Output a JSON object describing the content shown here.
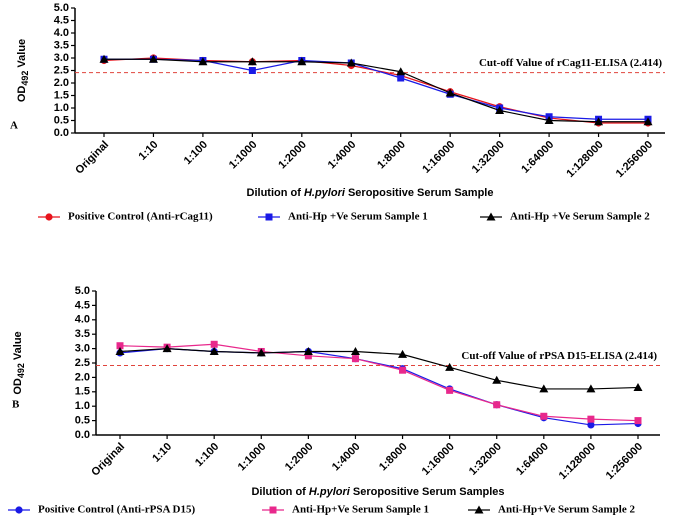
{
  "chart_data": [
    {
      "type": "line",
      "panel_label": "A",
      "ylabel": {
        "main": "OD",
        "sub": "492",
        "rest": " Value"
      },
      "xlabel": [
        "Dilution of ",
        "H.pylori",
        " Seropositive Serum Sample"
      ],
      "categories": [
        "Original",
        "1:10",
        "1:100",
        "1:1000",
        "1:2000",
        "1:4000",
        "1:8000",
        "1:16000",
        "1:32000",
        "1:64000",
        "1:128000",
        "1:256000"
      ],
      "ylim": [
        0,
        5
      ],
      "yticks": [
        {
          "value": 0,
          "label": "0.0"
        },
        0.5,
        {
          "value": 1,
          "label": "1.0"
        },
        1.5,
        {
          "value": 2,
          "label": "2.0"
        },
        2.5,
        {
          "value": 3,
          "label": "3.0"
        },
        3.5,
        {
          "value": 4,
          "label": "4.0"
        },
        4.5,
        {
          "value": 5,
          "label": "5.0"
        }
      ],
      "cutoff": {
        "value": 2.414,
        "label": "Cut-off Value of rCag11-ELISA (2.414)",
        "color": "#e0443c"
      },
      "series": [
        {
          "name": "Positive Control (Anti-rCag11)",
          "color": "#e8141c",
          "marker": "circle",
          "values": [
            2.9,
            3.0,
            2.9,
            2.85,
            2.9,
            2.7,
            2.3,
            1.65,
            1.05,
            0.6,
            0.4,
            0.4
          ]
        },
        {
          "name": "Anti-Hp +Ve Serum Sample 1",
          "color": "#1a1ae6",
          "marker": "square",
          "values": [
            2.95,
            2.95,
            2.9,
            2.5,
            2.9,
            2.8,
            2.2,
            1.55,
            1.0,
            0.65,
            0.55,
            0.55
          ]
        },
        {
          "name": "Anti-Hp +Ve Serum Sample 2",
          "color": "#000000",
          "marker": "triangle",
          "values": [
            2.95,
            2.95,
            2.85,
            2.85,
            2.85,
            2.8,
            2.45,
            1.6,
            0.9,
            0.5,
            0.45,
            0.45
          ]
        }
      ]
    },
    {
      "type": "line",
      "panel_label": "B",
      "ylabel": {
        "main": "OD",
        "sub": "492",
        "rest": " Value"
      },
      "xlabel": [
        "Dilution of ",
        "H.pylori",
        " Seropositive Serum Samples"
      ],
      "categories": [
        "Original",
        "1:10",
        "1:100",
        "1:1000",
        "1:2000",
        "1:4000",
        "1:8000",
        "1:16000",
        "1:32000",
        "1:64000",
        "1:128000",
        "1:256000"
      ],
      "ylim": [
        0,
        5
      ],
      "yticks": [
        {
          "value": 0,
          "label": "0.0"
        },
        0.5,
        {
          "value": 1,
          "label": "1.0"
        },
        1.5,
        {
          "value": 2,
          "label": "2.0"
        },
        2.5,
        {
          "value": 3,
          "label": "3.0"
        },
        3.5,
        {
          "value": 4,
          "label": "4.0"
        },
        4.5,
        {
          "value": 5,
          "label": "5.0"
        }
      ],
      "cutoff": {
        "value": 2.414,
        "label": "Cut-off Value of rPSA D15-ELISA (2.414)",
        "color": "#e0443c"
      },
      "series": [
        {
          "name": "Positive Control (Anti-rPSA D15)",
          "color": "#1a1ae6",
          "marker": "circle",
          "values": [
            2.85,
            3.0,
            2.9,
            2.85,
            2.9,
            2.65,
            2.3,
            1.6,
            1.05,
            0.6,
            0.35,
            0.4
          ]
        },
        {
          "name": "Anti-Hp+Ve Serum Sample 1",
          "color": "#e8288c",
          "marker": "square",
          "values": [
            3.1,
            3.05,
            3.15,
            2.9,
            2.75,
            2.65,
            2.25,
            1.55,
            1.05,
            0.65,
            0.55,
            0.5
          ]
        },
        {
          "name": "Anti-Hp+Ve Serum Sample 2",
          "color": "#000000",
          "marker": "triangle",
          "values": [
            2.9,
            3.0,
            2.9,
            2.85,
            2.9,
            2.9,
            2.8,
            2.35,
            1.9,
            1.6,
            1.6,
            1.65
          ]
        }
      ]
    }
  ]
}
